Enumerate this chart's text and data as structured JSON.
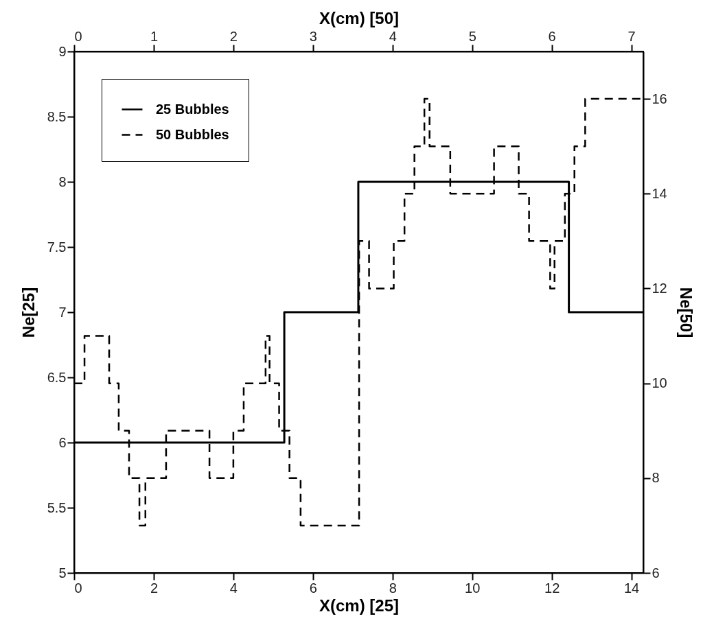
{
  "chart_data": {
    "type": "step",
    "xlabel": "X(cm) [25]",
    "x2label": "X(cm) [50]",
    "ylabel": "Ne[25]",
    "y2label": "Ne[50]",
    "xlim": [
      0,
      14.3
    ],
    "xticks": [
      0,
      2,
      4,
      6,
      8,
      10,
      12,
      14
    ],
    "x2lim": [
      0,
      7.15
    ],
    "x2ticks": [
      0,
      1,
      2,
      3,
      4,
      5,
      6,
      7
    ],
    "ylim": [
      5,
      9
    ],
    "yticks": [
      5,
      5.5,
      6,
      6.5,
      7,
      7.5,
      8,
      8.5,
      9
    ],
    "y2lim": [
      6,
      17
    ],
    "y2ticks": [
      6,
      8,
      10,
      12,
      14,
      16
    ],
    "grid": false,
    "legend": "top left",
    "marker": "none",
    "series": [
      {
        "name": "25 Bubbles",
        "color": "#000000",
        "line_style": "solid",
        "x": [
          0,
          5.28,
          7.14,
          12.43,
          14.3
        ],
        "values": [
          6,
          7,
          8,
          7,
          7
        ]
      },
      {
        "name": "50 Bubbles",
        "color": "#000000",
        "line_style": "dashed",
        "axis": "y2",
        "x": [
          0,
          0.26,
          0.88,
          1.12,
          1.38,
          1.64,
          1.79,
          2.31,
          3.4,
          4.0,
          4.26,
          4.81,
          4.91,
          5.15,
          5.41,
          5.69,
          7.16,
          7.41,
          8.03,
          8.3,
          8.55,
          8.8,
          8.93,
          9.45,
          10.55,
          11.17,
          11.43,
          11.96,
          12.07,
          12.33,
          12.57,
          12.84,
          14.3
        ],
        "values": [
          10,
          11,
          10,
          9,
          8,
          7,
          8,
          9,
          8,
          9,
          10,
          11,
          10,
          9,
          8,
          7,
          13,
          12,
          13,
          14,
          15,
          16,
          15,
          14,
          15,
          14,
          13,
          12,
          13,
          14,
          15,
          16,
          16
        ]
      }
    ]
  }
}
